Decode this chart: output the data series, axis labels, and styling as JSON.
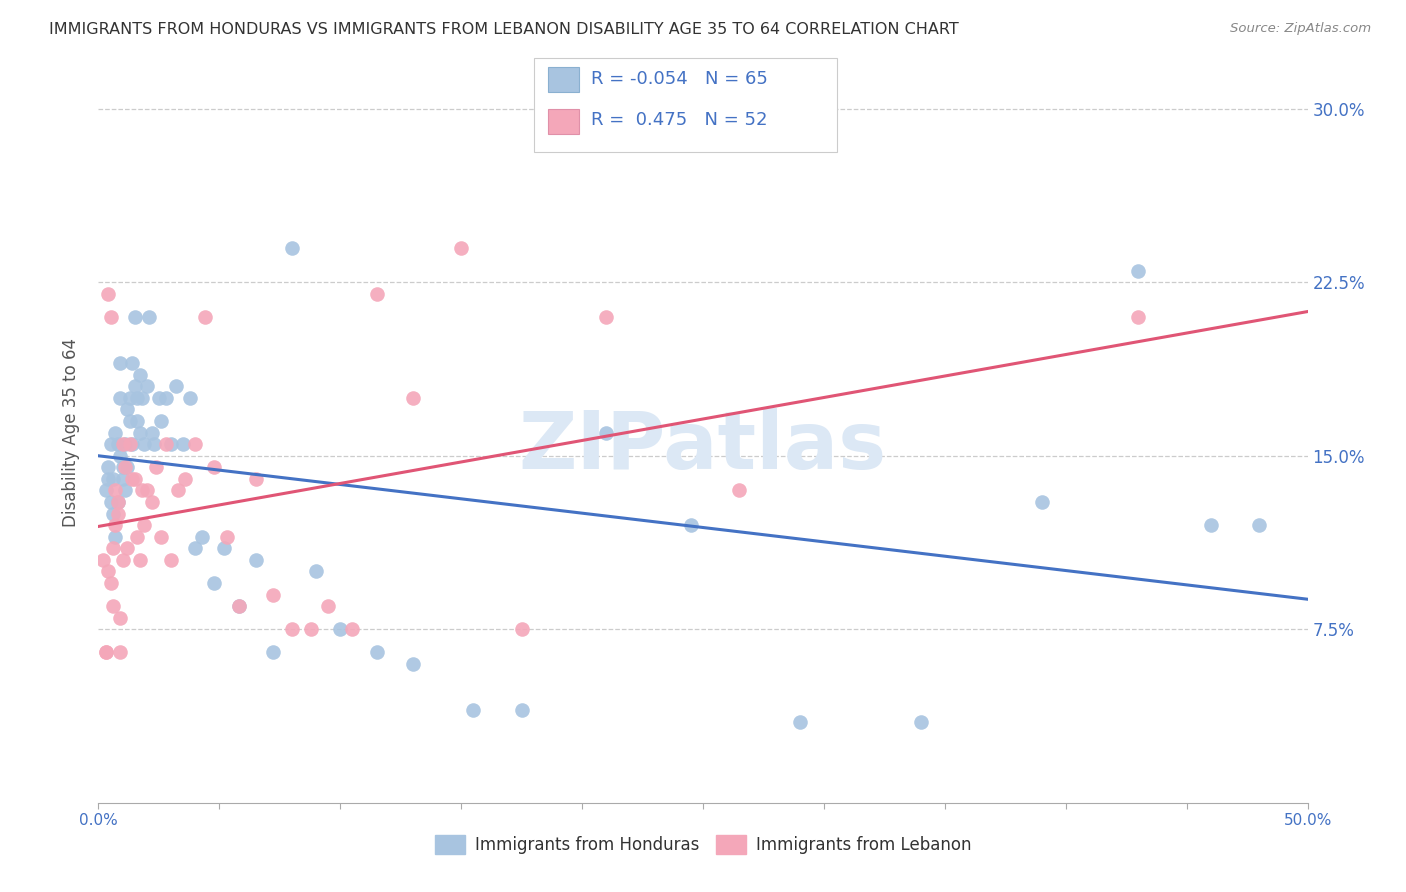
{
  "title": "IMMIGRANTS FROM HONDURAS VS IMMIGRANTS FROM LEBANON DISABILITY AGE 35 TO 64 CORRELATION CHART",
  "source": "Source: ZipAtlas.com",
  "ylabel": "Disability Age 35 to 64",
  "ytick_labels": [
    "7.5%",
    "15.0%",
    "22.5%",
    "30.0%"
  ],
  "ytick_values": [
    0.075,
    0.15,
    0.225,
    0.3
  ],
  "xlim": [
    0.0,
    0.5
  ],
  "ylim": [
    0.0,
    0.32
  ],
  "color_honduras": "#a8c4e0",
  "color_lebanon": "#f4a7b9",
  "trendline_color_honduras": "#4472c4",
  "trendline_color_lebanon": "#e05575",
  "watermark": "ZIPatlas",
  "watermark_color": "#dce8f5",
  "background_color": "#ffffff",
  "legend_text_color": "#4472c4",
  "legend_r_h": "-0.054",
  "legend_n_h": "65",
  "legend_r_l": "0.475",
  "legend_n_l": "52",
  "honduras_x": [
    0.003,
    0.004,
    0.004,
    0.005,
    0.005,
    0.006,
    0.006,
    0.007,
    0.007,
    0.008,
    0.008,
    0.009,
    0.009,
    0.009,
    0.01,
    0.01,
    0.011,
    0.011,
    0.012,
    0.012,
    0.013,
    0.013,
    0.014,
    0.014,
    0.015,
    0.015,
    0.016,
    0.016,
    0.017,
    0.017,
    0.018,
    0.019,
    0.02,
    0.021,
    0.022,
    0.023,
    0.025,
    0.026,
    0.028,
    0.03,
    0.032,
    0.035,
    0.038,
    0.04,
    0.043,
    0.048,
    0.052,
    0.058,
    0.065,
    0.072,
    0.08,
    0.09,
    0.1,
    0.115,
    0.13,
    0.155,
    0.175,
    0.21,
    0.245,
    0.29,
    0.34,
    0.39,
    0.43,
    0.46,
    0.48
  ],
  "honduras_y": [
    0.135,
    0.14,
    0.145,
    0.13,
    0.155,
    0.14,
    0.125,
    0.115,
    0.16,
    0.155,
    0.13,
    0.175,
    0.19,
    0.15,
    0.14,
    0.145,
    0.135,
    0.155,
    0.145,
    0.17,
    0.165,
    0.175,
    0.19,
    0.155,
    0.21,
    0.18,
    0.165,
    0.175,
    0.16,
    0.185,
    0.175,
    0.155,
    0.18,
    0.21,
    0.16,
    0.155,
    0.175,
    0.165,
    0.175,
    0.155,
    0.18,
    0.155,
    0.175,
    0.11,
    0.115,
    0.095,
    0.11,
    0.085,
    0.105,
    0.065,
    0.24,
    0.1,
    0.075,
    0.065,
    0.06,
    0.04,
    0.04,
    0.16,
    0.12,
    0.035,
    0.035,
    0.13,
    0.23,
    0.12,
    0.12
  ],
  "lebanon_x": [
    0.002,
    0.003,
    0.003,
    0.004,
    0.004,
    0.005,
    0.005,
    0.006,
    0.006,
    0.007,
    0.007,
    0.008,
    0.008,
    0.009,
    0.009,
    0.01,
    0.01,
    0.011,
    0.012,
    0.013,
    0.014,
    0.015,
    0.016,
    0.017,
    0.018,
    0.019,
    0.02,
    0.022,
    0.024,
    0.026,
    0.028,
    0.03,
    0.033,
    0.036,
    0.04,
    0.044,
    0.048,
    0.053,
    0.058,
    0.065,
    0.072,
    0.08,
    0.088,
    0.095,
    0.105,
    0.115,
    0.13,
    0.15,
    0.175,
    0.21,
    0.265,
    0.43
  ],
  "lebanon_y": [
    0.105,
    0.065,
    0.065,
    0.1,
    0.22,
    0.21,
    0.095,
    0.11,
    0.085,
    0.135,
    0.12,
    0.13,
    0.125,
    0.065,
    0.08,
    0.155,
    0.105,
    0.145,
    0.11,
    0.155,
    0.14,
    0.14,
    0.115,
    0.105,
    0.135,
    0.12,
    0.135,
    0.13,
    0.145,
    0.115,
    0.155,
    0.105,
    0.135,
    0.14,
    0.155,
    0.21,
    0.145,
    0.115,
    0.085,
    0.14,
    0.09,
    0.075,
    0.075,
    0.085,
    0.075,
    0.22,
    0.175,
    0.24,
    0.075,
    0.21,
    0.135,
    0.21
  ]
}
